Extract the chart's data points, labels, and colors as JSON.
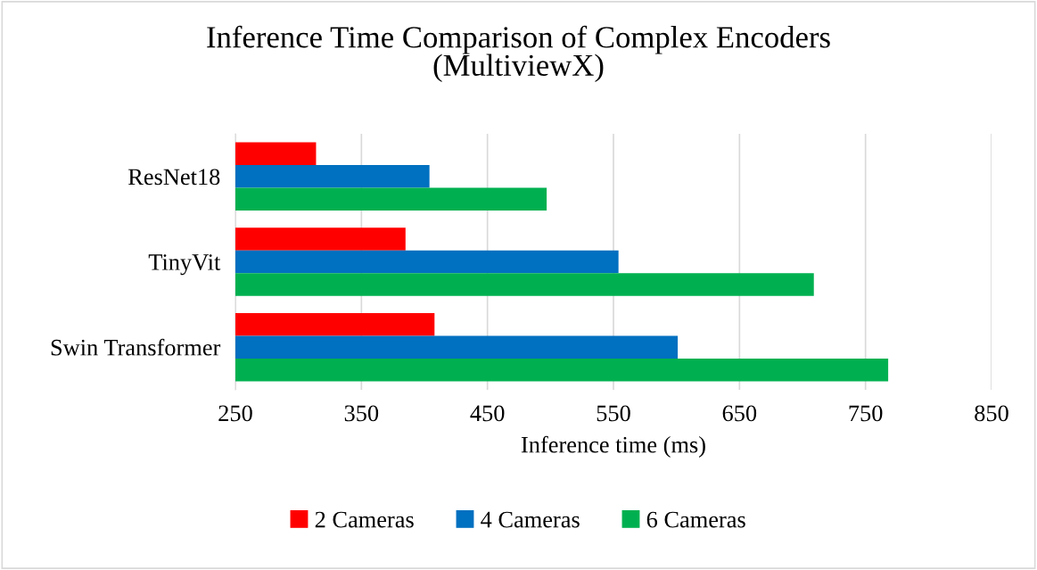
{
  "chart_data": {
    "type": "bar",
    "orientation": "horizontal",
    "title": "Inference Time Comparison of Complex Encoders\n(MultiviewX)",
    "xlabel": "Inference time (ms)",
    "categories": [
      "ResNet18",
      "TinyVit",
      "Swin Transformer"
    ],
    "series": [
      {
        "name": "2 Cameras",
        "color": "#ff0000",
        "values": [
          314,
          385,
          408
        ]
      },
      {
        "name": "4 Cameras",
        "color": "#0070c0",
        "values": [
          404,
          554,
          601
        ]
      },
      {
        "name": "6 Cameras",
        "color": "#00b050",
        "values": [
          497,
          709,
          768
        ]
      }
    ],
    "xlim": [
      250,
      850
    ],
    "xticks": [
      250,
      350,
      450,
      550,
      650,
      750,
      850
    ],
    "grid": "x",
    "legend": "bottom"
  }
}
